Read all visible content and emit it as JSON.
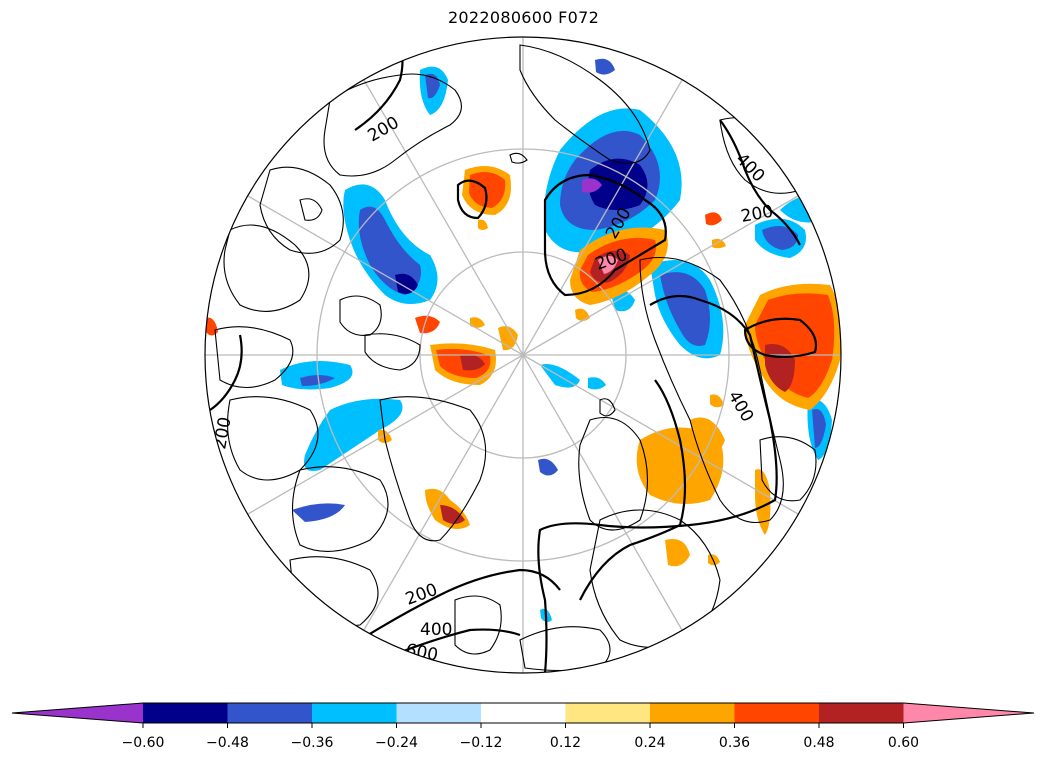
{
  "title": "2022080600 F072",
  "contour_labels": [
    "200",
    "200",
    "200",
    "200",
    "200",
    "200",
    "400",
    "400",
    "400",
    "600"
  ],
  "colorbar": {
    "ticks": [
      "−0.60",
      "−0.48",
      "−0.36",
      "−0.24",
      "−0.12",
      "0.12",
      "0.24",
      "0.36",
      "0.48",
      "0.60"
    ],
    "colors": [
      "#9933cc",
      "#00008b",
      "#3355cc",
      "#00bfff",
      "#b3e0ff",
      "#ffffff",
      "#ffe680",
      "#ffa500",
      "#ff4500",
      "#b22222",
      "#ff88aa"
    ]
  },
  "colors": {
    "coast": "#000000",
    "grid": "#bbbbbb",
    "contour": "#000000"
  }
}
